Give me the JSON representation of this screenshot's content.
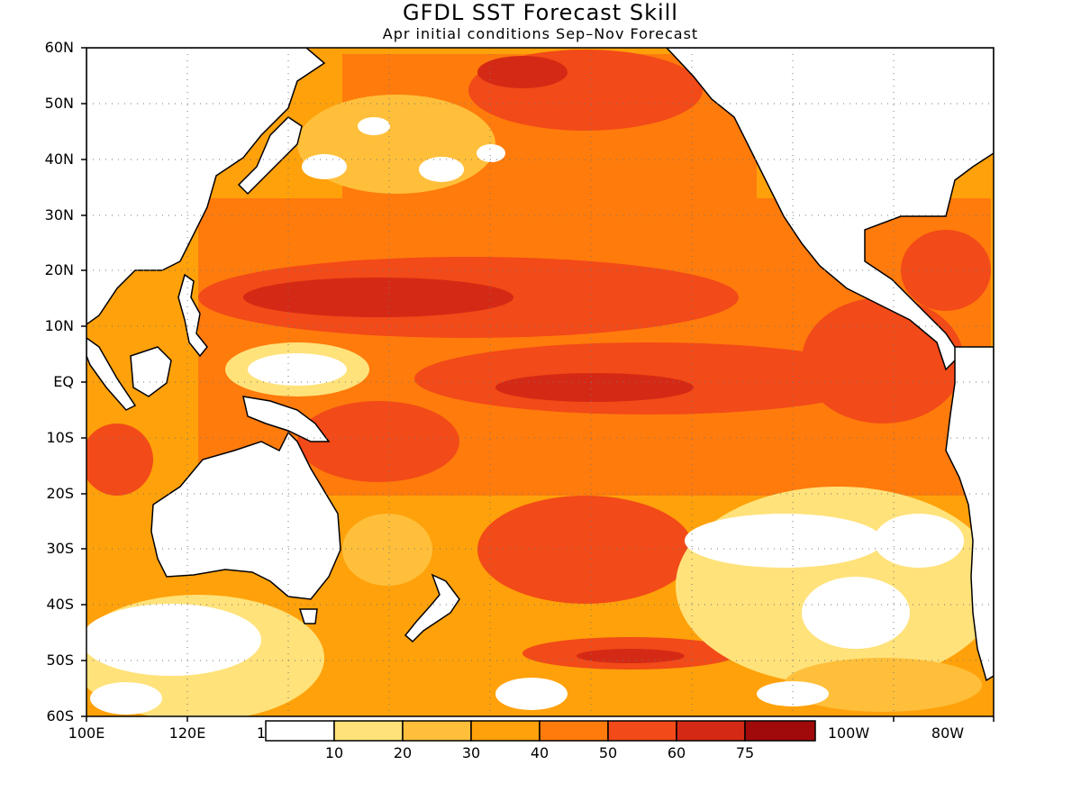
{
  "header": {
    "title": "GFDL SST Forecast Skill",
    "subtitle": "Apr initial conditions  Sep–Nov Forecast"
  },
  "map": {
    "region": "Pacific Ocean",
    "variable": "SST forecast skill",
    "lat_labels": [
      "60N",
      "50N",
      "40N",
      "30N",
      "20N",
      "10N",
      "EQ",
      "10S",
      "20S",
      "30S",
      "40S",
      "50S",
      "60S"
    ],
    "lon_labels": [
      "100E",
      "120E",
      "100W",
      "80W"
    ],
    "lon_label_partial": "1"
  },
  "colorbar": {
    "labels": [
      "10",
      "20",
      "30",
      "40",
      "50",
      "60",
      "75"
    ],
    "colors": [
      "#ffffff",
      "#ffe27a",
      "#ffbf3b",
      "#ffa10a",
      "#ff7b0c",
      "#f24a18",
      "#d42a15",
      "#a10a0a"
    ]
  }
}
